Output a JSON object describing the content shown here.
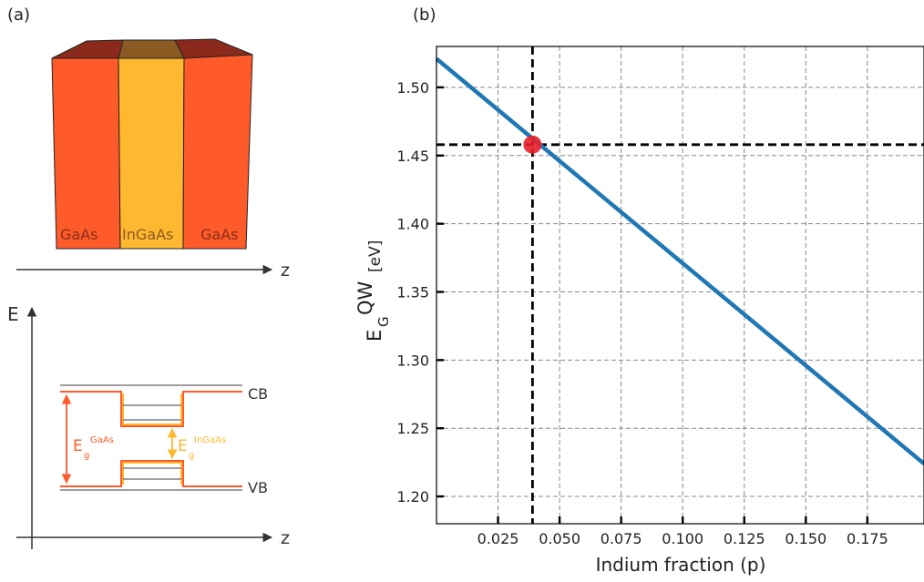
{
  "panel_a": {
    "label": "(a)",
    "layers": [
      "GaAs",
      "InGaAs",
      "GaAs"
    ],
    "z_label": "z",
    "energy_label": "E",
    "cb_label": "CB",
    "vb_label": "VB",
    "eg_gaas": {
      "main": "E",
      "sub": "g",
      "sup": "GaAs"
    },
    "eg_ingaas": {
      "main": "E",
      "sub": "g",
      "sup": "InGaAs"
    },
    "colors": {
      "gaas": "#ff5a2a",
      "ingaas": "#ffb830",
      "gaas_top": "#8b2a1c",
      "ingaas_top": "#8b5a22",
      "level_gray": "#666666"
    }
  },
  "panel_b": {
    "label": "(b)",
    "chart_data": {
      "type": "line",
      "xlabel": "Indium fraction (p)",
      "ylabel": {
        "main": "E",
        "sub": "G",
        "sup": "QW",
        "unit": "[eV]"
      },
      "xlim": [
        0.0,
        0.198
      ],
      "ylim": [
        1.18,
        1.53
      ],
      "xticks": [
        0.025,
        0.05,
        0.075,
        0.1,
        0.125,
        0.15,
        0.175
      ],
      "xtick_labels": [
        "0.025",
        "0.050",
        "0.075",
        "0.100",
        "0.125",
        "0.150",
        "0.175"
      ],
      "yticks": [
        1.2,
        1.25,
        1.3,
        1.35,
        1.4,
        1.45,
        1.5
      ],
      "ytick_labels": [
        "1.20",
        "1.25",
        "1.30",
        "1.35",
        "1.40",
        "1.45",
        "1.50"
      ],
      "grid": true,
      "series": [
        {
          "color": "#1f77b4",
          "x": [
            0.0,
            0.198
          ],
          "y": [
            1.521,
            1.224
          ]
        }
      ],
      "marker": {
        "x": 0.039,
        "y": 1.458,
        "color": "#e8202a"
      },
      "reference_lines": {
        "vertical_x": 0.039,
        "horizontal_y": 1.458
      }
    }
  }
}
